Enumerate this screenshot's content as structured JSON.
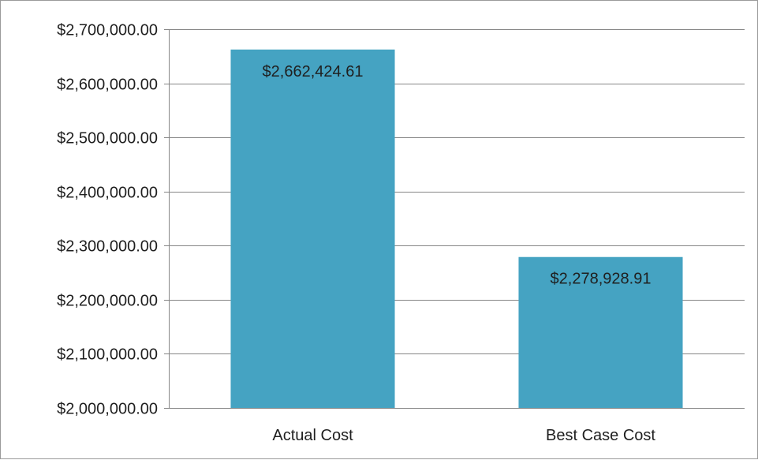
{
  "chart_data": {
    "type": "bar",
    "title": "",
    "xlabel": "",
    "ylabel": "",
    "categories": [
      "Actual Cost",
      "Best Case Cost"
    ],
    "values": [
      2662424.61,
      2278928.91
    ],
    "data_labels": [
      "$2,662,424.61",
      "$2,278,928.91"
    ],
    "ylim": [
      2000000,
      2700000
    ],
    "y_ticks": [
      2000000,
      2100000,
      2200000,
      2300000,
      2400000,
      2500000,
      2600000,
      2700000
    ],
    "y_tick_labels": [
      "$2,000,000.00",
      "$2,100,000.00",
      "$2,200,000.00",
      "$2,300,000.00",
      "$2,400,000.00",
      "$2,500,000.00",
      "$2,600,000.00",
      "$2,700,000.00"
    ],
    "grid": true,
    "legend": "none",
    "colors": {
      "bar": "#45a3c2",
      "gridline": "#868686",
      "axis": "#868686",
      "text": "#1f1f1f"
    }
  }
}
